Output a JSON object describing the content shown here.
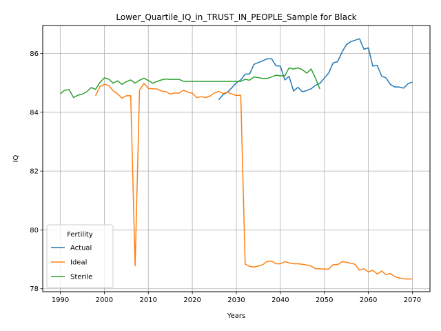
{
  "chart_data": {
    "type": "line",
    "title": "Lower_Quartile_IQ_in_TRUST_IN_PEOPLE_Sample for Black",
    "xlabel": "Years",
    "ylabel": "IQ",
    "xlim": [
      1986,
      2074
    ],
    "ylim": [
      77.9,
      86.95
    ],
    "xticks": [
      1990,
      2000,
      2010,
      2020,
      2030,
      2040,
      2050,
      2060,
      2070
    ],
    "yticks": [
      78,
      80,
      82,
      84,
      86
    ],
    "grid": true,
    "legend": {
      "title": "Fertility",
      "placement": "lower-left"
    },
    "series": [
      {
        "name": "Actual",
        "color": "#1f77b4",
        "x": [
          2026,
          2027,
          2028,
          2029,
          2030,
          2031,
          2032,
          2033,
          2034,
          2035,
          2036,
          2037,
          2038,
          2039,
          2040,
          2041,
          2042,
          2043,
          2044,
          2045,
          2046,
          2047,
          2048,
          2049,
          2050,
          2051,
          2052,
          2053,
          2054,
          2055,
          2056,
          2057,
          2058,
          2059,
          2060,
          2061,
          2062,
          2063,
          2064,
          2065,
          2066,
          2067,
          2068,
          2069,
          2070
        ],
        "y": [
          84.43,
          84.6,
          84.68,
          84.84,
          85.0,
          85.1,
          85.3,
          85.3,
          85.63,
          85.69,
          85.75,
          85.82,
          85.82,
          85.58,
          85.57,
          85.1,
          85.22,
          84.72,
          84.85,
          84.7,
          84.74,
          84.8,
          84.92,
          84.98,
          85.16,
          85.34,
          85.68,
          85.72,
          86.04,
          86.3,
          86.4,
          86.45,
          86.5,
          86.14,
          86.19,
          85.57,
          85.6,
          85.23,
          85.17,
          84.95,
          84.86,
          84.86,
          84.82,
          84.97,
          85.03
        ]
      },
      {
        "name": "Ideal",
        "color": "#ff7f0e",
        "x": [
          1998,
          1999,
          2000,
          2001,
          2002,
          2003,
          2004,
          2005,
          2006,
          2007,
          2008,
          2009,
          2010,
          2011,
          2012,
          2013,
          2014,
          2015,
          2016,
          2017,
          2018,
          2019,
          2020,
          2021,
          2022,
          2023,
          2024,
          2025,
          2026,
          2027,
          2028,
          2029,
          2030,
          2031,
          2032,
          2033,
          2034,
          2035,
          2036,
          2037,
          2038,
          2039,
          2040,
          2041,
          2042,
          2043,
          2044,
          2045,
          2046,
          2047,
          2048,
          2049,
          2050,
          2051,
          2052,
          2053,
          2054,
          2055,
          2056,
          2057,
          2058,
          2059,
          2060,
          2061,
          2062,
          2063,
          2064,
          2065,
          2066,
          2067,
          2068,
          2069,
          2070
        ],
        "y": [
          84.56,
          84.87,
          84.95,
          84.91,
          84.73,
          84.63,
          84.48,
          84.56,
          84.56,
          78.78,
          84.75,
          84.98,
          84.81,
          84.8,
          84.79,
          84.72,
          84.7,
          84.62,
          84.66,
          84.65,
          84.75,
          84.68,
          84.65,
          84.5,
          84.53,
          84.5,
          84.55,
          84.66,
          84.71,
          84.64,
          84.68,
          84.62,
          84.57,
          84.58,
          78.84,
          78.76,
          78.74,
          78.77,
          78.82,
          78.93,
          78.94,
          78.85,
          78.85,
          78.92,
          78.88,
          78.85,
          78.85,
          78.83,
          78.81,
          78.77,
          78.68,
          78.68,
          78.67,
          78.67,
          78.82,
          78.82,
          78.92,
          78.9,
          78.87,
          78.83,
          78.63,
          78.68,
          78.57,
          78.63,
          78.5,
          78.6,
          78.48,
          78.52,
          78.41,
          78.37,
          78.34,
          78.33,
          78.34
        ]
      },
      {
        "name": "Sterile",
        "color": "#2ca02c",
        "x": [
          1990,
          1991,
          1992,
          1993,
          1994,
          1995,
          1996,
          1997,
          1998,
          1999,
          2000,
          2001,
          2002,
          2003,
          2004,
          2005,
          2006,
          2007,
          2008,
          2009,
          2010,
          2011,
          2012,
          2013,
          2014,
          2015,
          2016,
          2017,
          2018,
          2019,
          2020,
          2021,
          2022,
          2023,
          2024,
          2025,
          2026,
          2027,
          2028,
          2029,
          2030,
          2031,
          2032,
          2033,
          2034,
          2035,
          2036,
          2037,
          2038,
          2039,
          2040,
          2041,
          2042,
          2043,
          2044,
          2045,
          2046,
          2047,
          2048,
          2049
        ],
        "y": [
          84.63,
          84.75,
          84.77,
          84.5,
          84.58,
          84.62,
          84.7,
          84.84,
          84.78,
          85.01,
          85.17,
          85.13,
          84.99,
          85.07,
          84.95,
          85.04,
          85.1,
          84.99,
          85.09,
          85.16,
          85.08,
          84.99,
          85.05,
          85.1,
          85.13,
          85.12,
          85.12,
          85.12,
          85.05,
          85.05,
          85.05,
          85.05,
          85.05,
          85.05,
          85.05,
          85.05,
          85.05,
          85.05,
          85.05,
          85.05,
          85.05,
          85.05,
          85.12,
          85.09,
          85.2,
          85.18,
          85.15,
          85.15,
          85.2,
          85.26,
          85.24,
          85.24,
          85.51,
          85.47,
          85.51,
          85.45,
          85.33,
          85.47,
          85.15,
          84.79
        ]
      }
    ]
  }
}
